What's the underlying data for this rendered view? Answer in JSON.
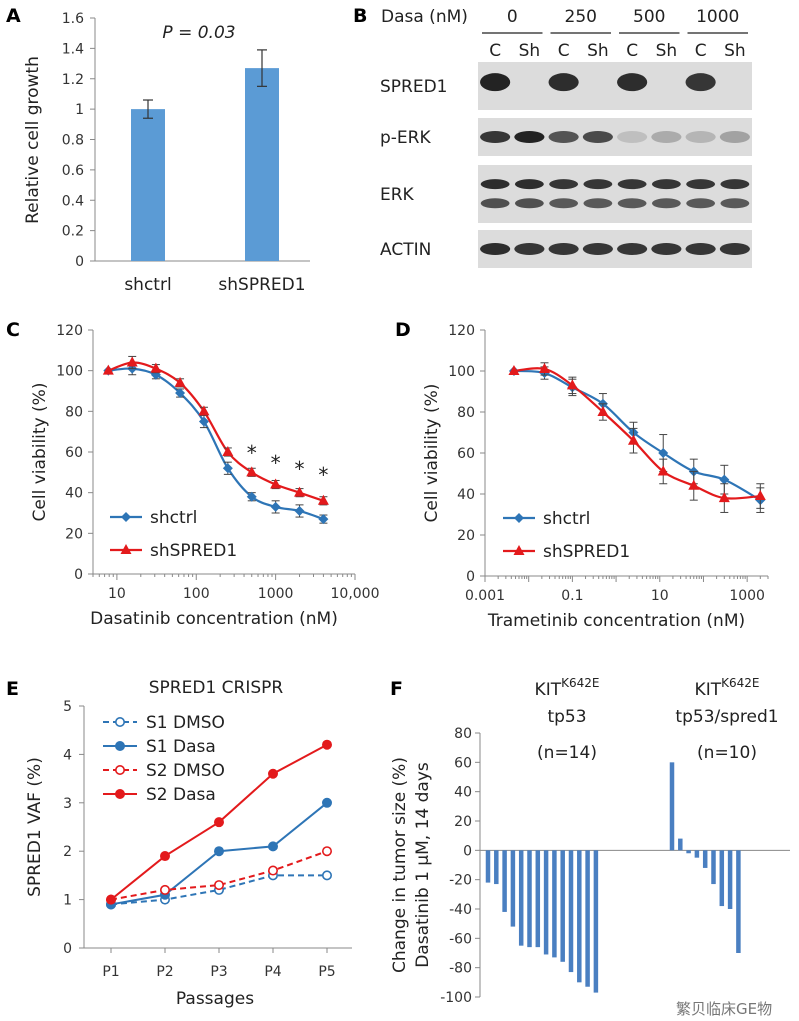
{
  "panels": {
    "A": {
      "letter": "A",
      "chart_data": {
        "type": "bar",
        "categories": [
          "shctrl",
          "shSPRED1"
        ],
        "values": [
          1.0,
          1.27
        ],
        "errors": [
          0.06,
          0.12
        ],
        "ylabel": "Relative cell growth",
        "ylim": [
          0,
          1.6
        ],
        "yticks": [
          "0",
          "0.2",
          "0.4",
          "0.6",
          "0.8",
          "1",
          "1.2",
          "1.4",
          "1.6"
        ],
        "annotation": "P = 0.03",
        "color": "#5b9bd5"
      }
    },
    "B": {
      "letter": "B",
      "dose_label": "Dasa (nM)",
      "doses": [
        "0",
        "250",
        "500",
        "1000"
      ],
      "lanes": [
        "C",
        "Sh",
        "C",
        "Sh",
        "C",
        "Sh",
        "C",
        "Sh"
      ],
      "rows": [
        {
          "label": "SPRED1",
          "intensity": [
            0.95,
            0.0,
            0.9,
            0.0,
            0.9,
            0.0,
            0.85,
            0.0
          ],
          "lines": 1
        },
        {
          "label": "p-ERK",
          "intensity": [
            0.85,
            0.95,
            0.7,
            0.75,
            0.15,
            0.25,
            0.2,
            0.3
          ],
          "lines": 1
        },
        {
          "label": "ERK",
          "intensity": [
            0.9,
            0.9,
            0.85,
            0.85,
            0.85,
            0.85,
            0.85,
            0.85
          ],
          "lines": 2
        },
        {
          "label": "ACTIN",
          "intensity": [
            0.9,
            0.85,
            0.85,
            0.85,
            0.85,
            0.85,
            0.85,
            0.85
          ],
          "lines": 1
        }
      ]
    },
    "C": {
      "letter": "C",
      "chart_data": {
        "type": "line",
        "xscale": "log",
        "x": [
          7.8,
          15.6,
          31,
          62.5,
          125,
          250,
          500,
          1000,
          2000,
          4000
        ],
        "series": [
          {
            "name": "shctrl",
            "color": "#2e75b6",
            "marker": "diamond",
            "values": [
              100,
              101,
              98,
              89,
              75,
              52,
              38,
              33,
              31,
              27
            ],
            "errors": [
              0,
              3,
              2,
              2,
              3,
              3,
              2,
              3,
              3,
              2
            ]
          },
          {
            "name": "shSPRED1",
            "color": "#e31a1c",
            "marker": "triangle",
            "values": [
              100,
              104,
              101,
              94,
              80,
              60,
              50,
              44,
              40,
              36
            ],
            "errors": [
              0,
              3,
              2,
              2,
              2,
              2,
              2,
              2,
              2,
              2
            ]
          }
        ],
        "significance": [
          "*",
          "*",
          "*",
          "*"
        ],
        "significance_x": [
          500,
          1000,
          2000,
          4000
        ],
        "ylabel": "Cell viability (%)",
        "xlabel": "Dasatinib concentration (nM)",
        "ylim": [
          0,
          120
        ],
        "yticks": [
          "0",
          "20",
          "40",
          "60",
          "80",
          "100",
          "120"
        ],
        "xticks": [
          "10",
          "100",
          "1000",
          "10,000"
        ],
        "xtick_values": [
          10,
          100,
          1000,
          10000
        ],
        "xlim": [
          5,
          10000
        ]
      }
    },
    "D": {
      "letter": "D",
      "chart_data": {
        "type": "line",
        "xscale": "log",
        "x": [
          0.0046,
          0.023,
          0.1,
          0.5,
          2.5,
          12,
          60,
          300,
          2000
        ],
        "series": [
          {
            "name": "shctrl",
            "color": "#2e75b6",
            "marker": "diamond",
            "values": [
              100,
              99,
              92,
              84,
              70,
              60,
              51,
              47,
              37
            ],
            "errors": [
              0,
              3,
              4,
              5,
              5,
              9,
              6,
              7,
              6
            ]
          },
          {
            "name": "shSPRED1",
            "color": "#e31a1c",
            "marker": "triangle",
            "values": [
              100,
              101,
              93,
              80,
              66,
              51,
              44,
              38,
              39
            ],
            "errors": [
              0,
              3,
              4,
              4,
              6,
              6,
              7,
              7,
              6
            ]
          }
        ],
        "ylabel": "Cell viability (%)",
        "xlabel": "Trametinib concentration (nM)",
        "ylim": [
          0,
          120
        ],
        "yticks": [
          "0",
          "20",
          "40",
          "60",
          "80",
          "100",
          "120"
        ],
        "xticks": [
          "0.001",
          "0.1",
          "10",
          "1000"
        ],
        "xtick_values": [
          0.001,
          0.1,
          10,
          1000
        ],
        "xlim": [
          0.001,
          3000
        ]
      }
    },
    "E": {
      "letter": "E",
      "chart_data": {
        "type": "line",
        "title": "SPRED1 CRISPR",
        "categories": [
          "P1",
          "P2",
          "P3",
          "P4",
          "P5"
        ],
        "series": [
          {
            "name": "S1 DMSO",
            "color": "#2e75b6",
            "dashed": true,
            "filled": false,
            "values": [
              0.9,
              1.0,
              1.2,
              1.5,
              1.5
            ]
          },
          {
            "name": "S1 Dasa",
            "color": "#2e75b6",
            "dashed": false,
            "filled": true,
            "values": [
              0.9,
              1.1,
              2.0,
              2.1,
              3.0
            ]
          },
          {
            "name": "S2 DMSO",
            "color": "#e31a1c",
            "dashed": true,
            "filled": false,
            "values": [
              1.0,
              1.2,
              1.3,
              1.6,
              2.0
            ]
          },
          {
            "name": "S2 Dasa",
            "color": "#e31a1c",
            "dashed": false,
            "filled": true,
            "values": [
              1.0,
              1.9,
              2.6,
              3.6,
              4.2
            ]
          }
        ],
        "ylabel": "SPRED1 VAF (%)",
        "xlabel": "Passages",
        "ylim": [
          0,
          5
        ],
        "yticks": [
          "0",
          "1",
          "2",
          "3",
          "4",
          "5"
        ]
      }
    },
    "F": {
      "letter": "F",
      "chart_data": {
        "type": "bar",
        "groups": [
          {
            "title_main": "KIT",
            "title_sup": "K642E",
            "title_line2": "tp53",
            "n": "(n=14)",
            "values": [
              -22,
              -23,
              -42,
              -52,
              -65,
              -66,
              -66,
              -71,
              -73,
              -76,
              -83,
              -90,
              -93,
              -97
            ]
          },
          {
            "title_main": "KIT",
            "title_sup": "K642E",
            "title_line2": "tp53/spred1",
            "n": "(n=10)",
            "values": [
              60,
              8,
              -2,
              -5,
              -12,
              -23,
              -38,
              -40,
              -70,
              0
            ]
          }
        ],
        "ylabel_line1": "Change in tumor size (%)",
        "ylabel_line2": "Dasatinib 1 μM, 14 days",
        "ylim": [
          -100,
          80
        ],
        "yticks": [
          "-100",
          "-80",
          "-60",
          "-40",
          "-20",
          "0",
          "20",
          "40",
          "60",
          "80"
        ],
        "color": "#4a7fc1"
      }
    }
  },
  "watermark": "繁贝临床GE物"
}
